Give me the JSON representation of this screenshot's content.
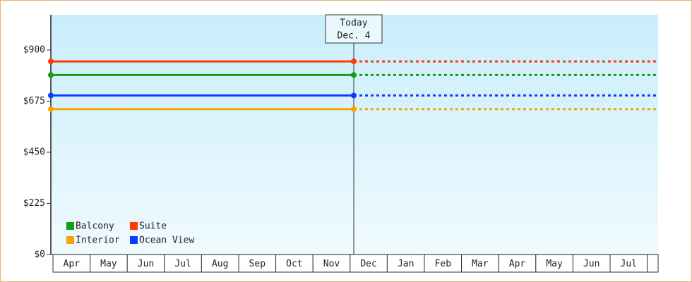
{
  "chart_data": {
    "type": "line",
    "categories": [
      "Apr",
      "May",
      "Jun",
      "Jul",
      "Aug",
      "Sep",
      "Oct",
      "Nov",
      "Dec",
      "Jan",
      "Feb",
      "Mar",
      "Apr",
      "May",
      "Jun",
      "Jul"
    ],
    "series": [
      {
        "name": "Balcony",
        "color": "#11a011",
        "value": 790
      },
      {
        "name": "Suite",
        "color": "#ff3b00",
        "value": 850
      },
      {
        "name": "Interior",
        "color": "#f5a300",
        "value": 640
      },
      {
        "name": "Ocean View",
        "color": "#0a3cff",
        "value": 700
      }
    ],
    "ylim": [
      0,
      1055
    ],
    "yticks": [
      {
        "value": 0,
        "label": "$0"
      },
      {
        "value": 225,
        "label": "$225"
      },
      {
        "value": 450,
        "label": "$450"
      },
      {
        "value": 675,
        "label": "$675"
      },
      {
        "value": 900,
        "label": "$900"
      }
    ],
    "today": {
      "label": "Today",
      "date": "Dec. 4"
    },
    "legend": "bottom-left"
  }
}
